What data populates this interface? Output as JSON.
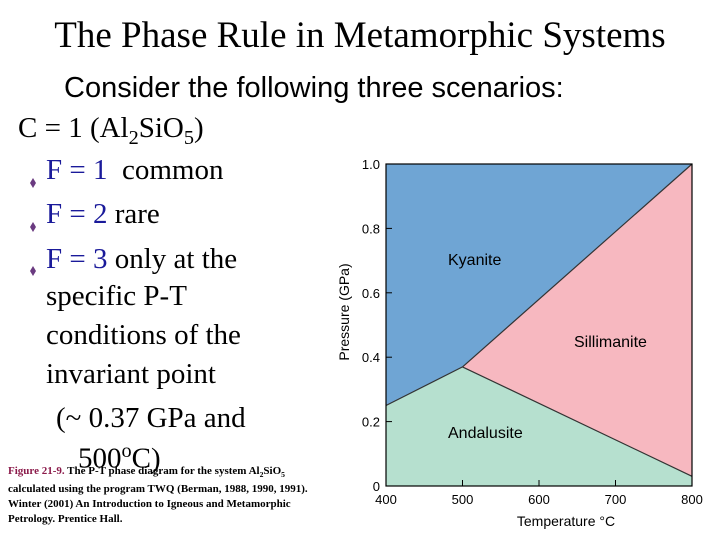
{
  "title": "The Phase Rule in Metamorphic Systems",
  "subtitle": "Consider the following three scenarios:",
  "text": {
    "c_prefix": "C = 1 (Al",
    "c_sub1": "2",
    "c_mid": "SiO",
    "c_sub2": "5",
    "c_suffix": ")",
    "f1_label": "F = 1",
    "f1_text": "common",
    "f2_label": "F = 2",
    "f2_text": "rare",
    "f3_label": "F = 3",
    "f3_text": "only at the",
    "f3_line2": "specific P-T",
    "f3_line3": "conditions of the",
    "f3_line4": "invariant point",
    "f3_line5": "(~ 0.37 GPa and",
    "f3_line6_num": "500",
    "f3_line6_sup": "o",
    "f3_line6_end": "C)"
  },
  "caption": {
    "label": "Figure 21-9.",
    "text1": " The P-T phase diagram for the system Al",
    "sub1": "2",
    "text2": "SiO",
    "sub2": "5",
    "text3": " calculated using the program TWQ (Berman, 1988, 1990, 1991). Winter (2001) An Introduction to Igneous and Metamorphic Petrology. Prentice Hall."
  },
  "diagram": {
    "xlabel": "Temperature °C",
    "ylabel": "Pressure (GPa)",
    "x_ticks": [
      "400",
      "500",
      "600",
      "700",
      "800"
    ],
    "y_ticks": [
      "0",
      "0.2",
      "0.4",
      "0.6",
      "0.8",
      "1.0"
    ],
    "x_range": [
      400,
      800
    ],
    "y_range": [
      0,
      1.0
    ],
    "regions": [
      "Kyanite",
      "Sillimanite",
      "Andalusite"
    ],
    "colors": {
      "kyanite": "#6fa5d4",
      "sillimanite": "#f7b8c0",
      "andalusite": "#b6e0cf"
    },
    "boundaries": {
      "kyanite_andalusite": [
        [
          400,
          0.25
        ],
        [
          500,
          0.37
        ]
      ],
      "andalusite_sillimanite": [
        [
          500,
          0.37
        ],
        [
          800,
          0.03
        ]
      ],
      "kyanite_sillimanite": [
        [
          500,
          0.37
        ],
        [
          800,
          1.0
        ]
      ]
    }
  }
}
